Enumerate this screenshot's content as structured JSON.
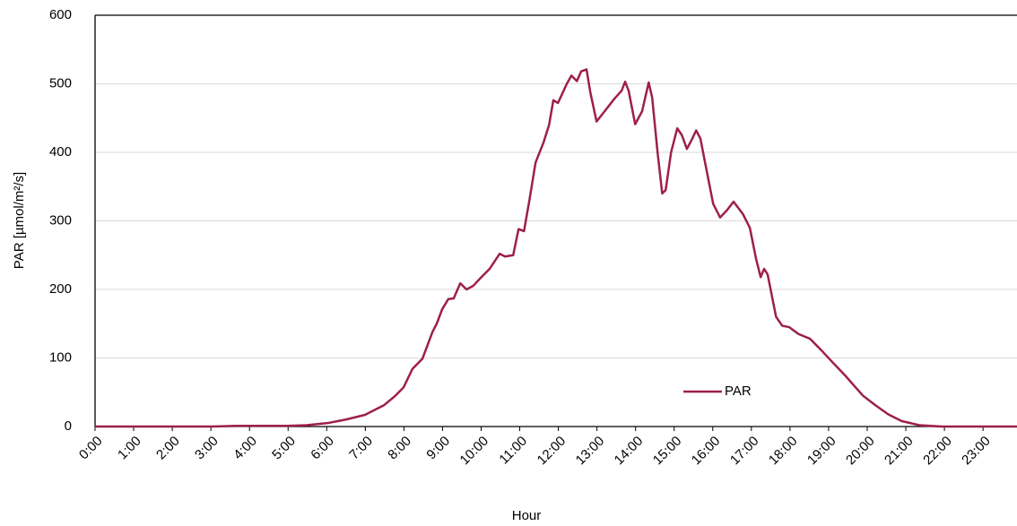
{
  "chart_data": {
    "type": "line",
    "x_label": "Hour",
    "y_label": "PAR [µmol/m²/s]",
    "series": [
      {
        "name": "PAR",
        "color": "#9e1f4a",
        "x": [
          0.0,
          3.02,
          3.62,
          4.97,
          5.48,
          6.02,
          6.48,
          6.99,
          7.48,
          7.76,
          7.99,
          8.22,
          8.48,
          8.62,
          8.74,
          8.85,
          8.99,
          9.15,
          9.29,
          9.46,
          9.62,
          9.79,
          9.99,
          10.22,
          10.48,
          10.62,
          10.83,
          10.97,
          11.11,
          11.25,
          11.41,
          11.62,
          11.76,
          11.87,
          11.99,
          12.22,
          12.34,
          12.48,
          12.59,
          12.73,
          12.83,
          12.99,
          13.2,
          13.45,
          13.64,
          13.73,
          13.82,
          13.99,
          14.17,
          14.34,
          14.43,
          14.57,
          14.69,
          14.78,
          14.92,
          15.08,
          15.2,
          15.33,
          15.47,
          15.57,
          15.68,
          15.87,
          16.01,
          16.19,
          16.36,
          16.54,
          16.78,
          16.96,
          17.12,
          17.24,
          17.33,
          17.42,
          17.64,
          17.8,
          17.98,
          18.22,
          18.52,
          18.8,
          19.08,
          19.42,
          19.89,
          20.19,
          20.54,
          20.89,
          21.35,
          21.93,
          23.88
        ],
        "values": [
          0,
          0,
          1,
          1,
          2,
          5,
          10,
          17,
          31,
          44,
          57,
          84,
          99,
          120,
          138,
          150,
          171,
          186,
          187,
          209,
          200,
          205,
          217,
          230,
          252,
          248,
          250,
          288,
          285,
          330,
          385,
          415,
          440,
          476,
          472,
          500,
          512,
          504,
          518,
          521,
          487,
          445,
          460,
          478,
          490,
          503,
          490,
          441,
          460,
          502,
          480,
          400,
          340,
          345,
          400,
          435,
          425,
          405,
          420,
          432,
          420,
          365,
          325,
          305,
          315,
          328,
          310,
          290,
          245,
          218,
          230,
          222,
          160,
          147,
          145,
          135,
          128,
          112,
          95,
          75,
          45,
          32,
          18,
          8,
          2,
          0,
          0
        ]
      }
    ],
    "xlim": [
      0,
      23.88
    ],
    "xticks": [
      {
        "value": 0,
        "label": "0:00"
      },
      {
        "value": 1,
        "label": "1:00"
      },
      {
        "value": 2,
        "label": "2:00"
      },
      {
        "value": 3,
        "label": "3:00"
      },
      {
        "value": 4,
        "label": "4:00"
      },
      {
        "value": 5,
        "label": "5:00"
      },
      {
        "value": 6,
        "label": "6:00"
      },
      {
        "value": 7,
        "label": "7:00"
      },
      {
        "value": 8,
        "label": "8:00"
      },
      {
        "value": 9,
        "label": "9:00"
      },
      {
        "value": 10,
        "label": "10:00"
      },
      {
        "value": 11,
        "label": "11:00"
      },
      {
        "value": 12,
        "label": "12:00"
      },
      {
        "value": 13,
        "label": "13:00"
      },
      {
        "value": 14,
        "label": "14:00"
      },
      {
        "value": 15,
        "label": "15:00"
      },
      {
        "value": 16,
        "label": "16:00"
      },
      {
        "value": 17,
        "label": "17:00"
      },
      {
        "value": 18,
        "label": "18:00"
      },
      {
        "value": 19,
        "label": "19:00"
      },
      {
        "value": 20,
        "label": "20:00"
      },
      {
        "value": 21,
        "label": "21:00"
      },
      {
        "value": 22,
        "label": "22:00"
      },
      {
        "value": 23,
        "label": "23:00"
      }
    ],
    "ylim": [
      0,
      600
    ],
    "yticks": [
      0,
      100,
      200,
      300,
      400,
      500,
      600
    ],
    "grid": true,
    "legend": "lower right"
  }
}
